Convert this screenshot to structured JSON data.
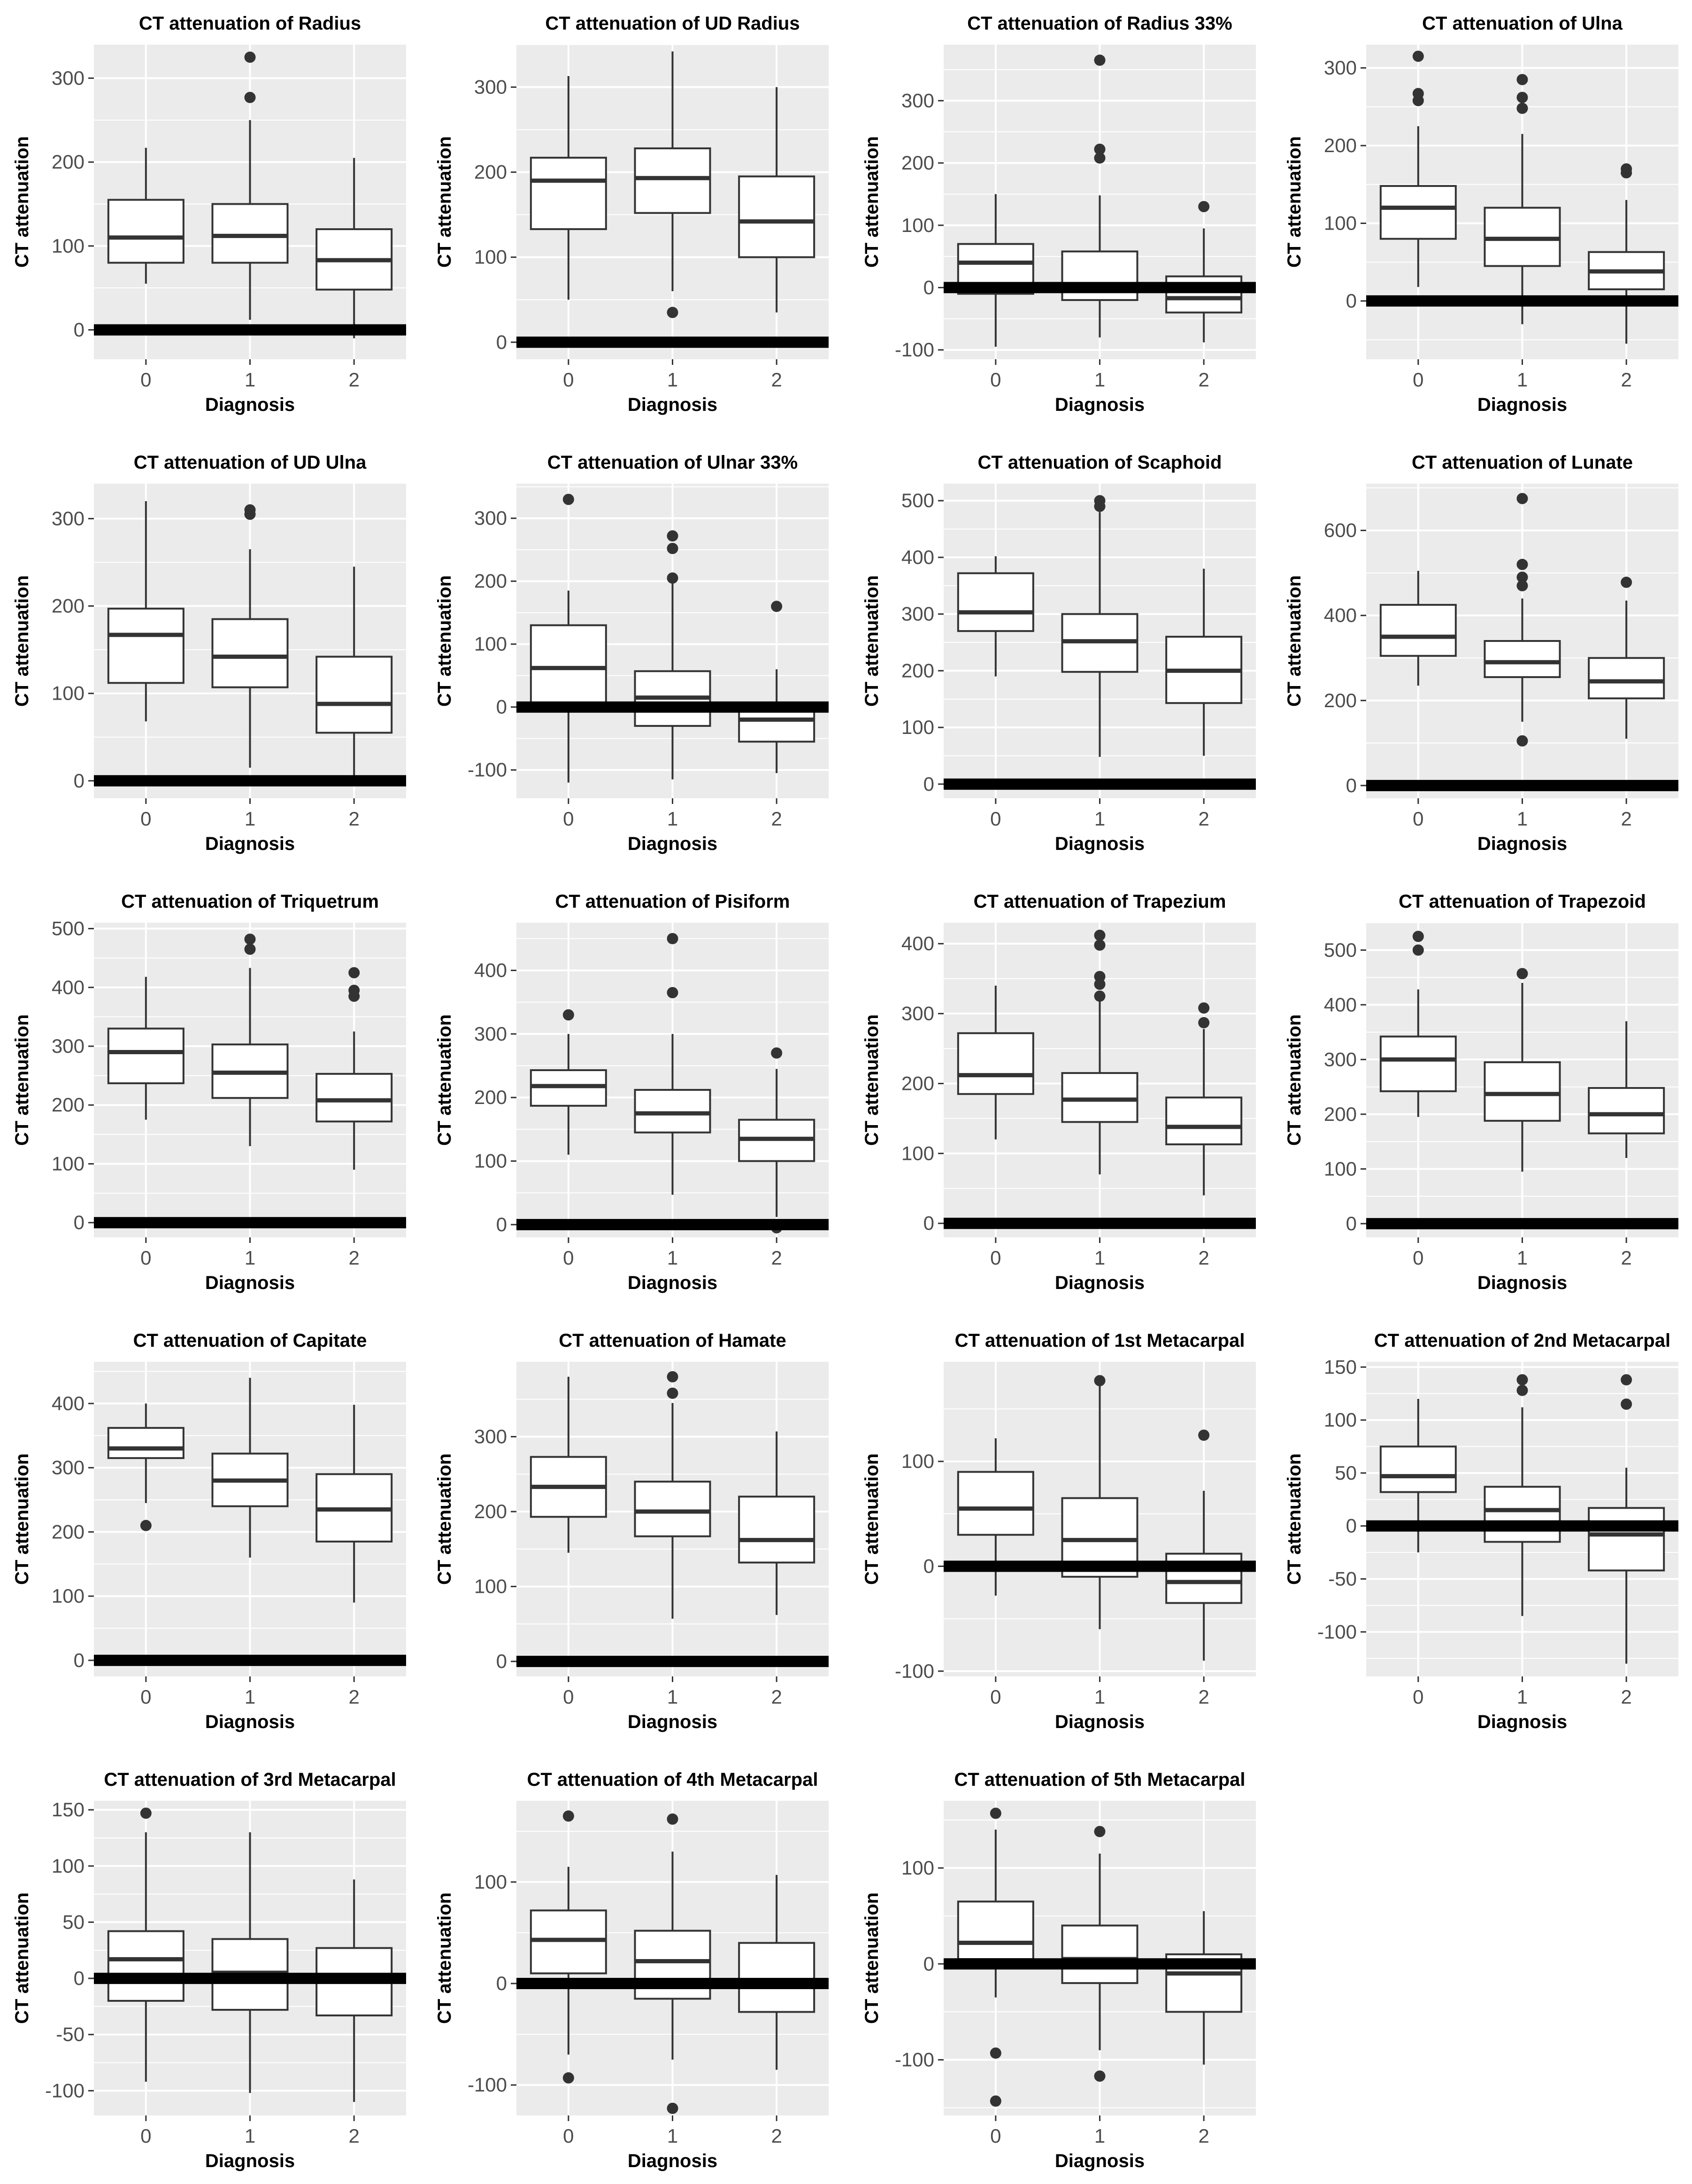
{
  "figure": {
    "xlabel": "Diagnosis",
    "ylabel": "CT attenuation",
    "reference_line_y": 0
  },
  "chart_data": [
    {
      "type": "box",
      "title": "CT attenuation of Radius",
      "categories": [
        "0",
        "1",
        "2"
      ],
      "ylim": [
        -35,
        340
      ],
      "yticks": [
        0,
        100,
        200,
        300
      ],
      "boxes": [
        {
          "whisker_low": 55,
          "q1": 80,
          "median": 110,
          "q3": 155,
          "whisker_high": 217,
          "outliers": []
        },
        {
          "whisker_low": 12,
          "q1": 80,
          "median": 112,
          "q3": 150,
          "whisker_high": 250,
          "outliers": [
            277,
            325
          ]
        },
        {
          "whisker_low": -10,
          "q1": 48,
          "median": 83,
          "q3": 120,
          "whisker_high": 205,
          "outliers": []
        }
      ]
    },
    {
      "type": "box",
      "title": "CT attenuation of UD Radius",
      "categories": [
        "0",
        "1",
        "2"
      ],
      "ylim": [
        -20,
        350
      ],
      "yticks": [
        0,
        100,
        200,
        300
      ],
      "boxes": [
        {
          "whisker_low": 50,
          "q1": 133,
          "median": 190,
          "q3": 217,
          "whisker_high": 313,
          "outliers": []
        },
        {
          "whisker_low": 60,
          "q1": 152,
          "median": 193,
          "q3": 228,
          "whisker_high": 342,
          "outliers": [
            35
          ]
        },
        {
          "whisker_low": 35,
          "q1": 100,
          "median": 142,
          "q3": 195,
          "whisker_high": 300,
          "outliers": []
        }
      ]
    },
    {
      "type": "box",
      "title": "CT attenuation of Radius 33%",
      "categories": [
        "0",
        "1",
        "2"
      ],
      "ylim": [
        -115,
        390
      ],
      "yticks": [
        -100,
        0,
        100,
        200,
        300
      ],
      "boxes": [
        {
          "whisker_low": -95,
          "q1": -10,
          "median": 40,
          "q3": 70,
          "whisker_high": 150,
          "outliers": []
        },
        {
          "whisker_low": -80,
          "q1": -20,
          "median": 5,
          "q3": 58,
          "whisker_high": 148,
          "outliers": [
            208,
            222,
            365
          ]
        },
        {
          "whisker_low": -88,
          "q1": -40,
          "median": -17,
          "q3": 18,
          "whisker_high": 95,
          "outliers": [
            130
          ]
        }
      ]
    },
    {
      "type": "box",
      "title": "CT attenuation of Ulna",
      "categories": [
        "0",
        "1",
        "2"
      ],
      "ylim": [
        -75,
        330
      ],
      "yticks": [
        0,
        100,
        200,
        300
      ],
      "boxes": [
        {
          "whisker_low": 18,
          "q1": 80,
          "median": 120,
          "q3": 148,
          "whisker_high": 225,
          "outliers": [
            258,
            267,
            315
          ]
        },
        {
          "whisker_low": -30,
          "q1": 45,
          "median": 80,
          "q3": 120,
          "whisker_high": 215,
          "outliers": [
            248,
            262,
            285
          ]
        },
        {
          "whisker_low": -55,
          "q1": 15,
          "median": 38,
          "q3": 63,
          "whisker_high": 130,
          "outliers": [
            165,
            170
          ]
        }
      ]
    },
    {
      "type": "box",
      "title": "CT attenuation of UD Ulna",
      "categories": [
        "0",
        "1",
        "2"
      ],
      "ylim": [
        -20,
        340
      ],
      "yticks": [
        0,
        100,
        200,
        300
      ],
      "boxes": [
        {
          "whisker_low": 68,
          "q1": 112,
          "median": 167,
          "q3": 197,
          "whisker_high": 320,
          "outliers": []
        },
        {
          "whisker_low": 15,
          "q1": 107,
          "median": 142,
          "q3": 185,
          "whisker_high": 265,
          "outliers": [
            305,
            310
          ]
        },
        {
          "whisker_low": 0,
          "q1": 55,
          "median": 88,
          "q3": 142,
          "whisker_high": 245,
          "outliers": []
        }
      ]
    },
    {
      "type": "box",
      "title": "CT attenuation of Ulnar 33%",
      "categories": [
        "0",
        "1",
        "2"
      ],
      "ylim": [
        -145,
        355
      ],
      "yticks": [
        -100,
        0,
        100,
        200,
        300
      ],
      "boxes": [
        {
          "whisker_low": -120,
          "q1": 5,
          "median": 62,
          "q3": 130,
          "whisker_high": 185,
          "outliers": [
            330
          ]
        },
        {
          "whisker_low": -115,
          "q1": -30,
          "median": 15,
          "q3": 57,
          "whisker_high": 200,
          "outliers": [
            205,
            252,
            272
          ]
        },
        {
          "whisker_low": -105,
          "q1": -55,
          "median": -20,
          "q3": 0,
          "whisker_high": 60,
          "outliers": [
            160
          ]
        }
      ]
    },
    {
      "type": "box",
      "title": "CT attenuation of Scaphoid",
      "categories": [
        "0",
        "1",
        "2"
      ],
      "ylim": [
        -25,
        530
      ],
      "yticks": [
        0,
        100,
        200,
        300,
        400,
        500
      ],
      "boxes": [
        {
          "whisker_low": 190,
          "q1": 270,
          "median": 303,
          "q3": 372,
          "whisker_high": 402,
          "outliers": []
        },
        {
          "whisker_low": 48,
          "q1": 198,
          "median": 252,
          "q3": 300,
          "whisker_high": 480,
          "outliers": [
            490,
            500
          ]
        },
        {
          "whisker_low": 50,
          "q1": 143,
          "median": 200,
          "q3": 260,
          "whisker_high": 380,
          "outliers": []
        }
      ]
    },
    {
      "type": "box",
      "title": "CT attenuation of Lunate",
      "categories": [
        "0",
        "1",
        "2"
      ],
      "ylim": [
        -30,
        710
      ],
      "yticks": [
        0,
        200,
        400,
        600
      ],
      "boxes": [
        {
          "whisker_low": 235,
          "q1": 305,
          "median": 350,
          "q3": 425,
          "whisker_high": 505,
          "outliers": []
        },
        {
          "whisker_low": 150,
          "q1": 255,
          "median": 290,
          "q3": 340,
          "whisker_high": 440,
          "outliers": [
            105,
            470,
            490,
            520,
            675
          ]
        },
        {
          "whisker_low": 110,
          "q1": 205,
          "median": 245,
          "q3": 300,
          "whisker_high": 435,
          "outliers": [
            478
          ]
        }
      ]
    },
    {
      "type": "box",
      "title": "CT attenuation of Triquetrum",
      "categories": [
        "0",
        "1",
        "2"
      ],
      "ylim": [
        -25,
        510
      ],
      "yticks": [
        0,
        100,
        200,
        300,
        400,
        500
      ],
      "boxes": [
        {
          "whisker_low": 175,
          "q1": 237,
          "median": 290,
          "q3": 330,
          "whisker_high": 418,
          "outliers": []
        },
        {
          "whisker_low": 130,
          "q1": 212,
          "median": 255,
          "q3": 303,
          "whisker_high": 433,
          "outliers": [
            465,
            482
          ]
        },
        {
          "whisker_low": 90,
          "q1": 172,
          "median": 208,
          "q3": 253,
          "whisker_high": 325,
          "outliers": [
            385,
            395,
            425
          ]
        }
      ]
    },
    {
      "type": "box",
      "title": "CT attenuation of Pisiform",
      "categories": [
        "0",
        "1",
        "2"
      ],
      "ylim": [
        -20,
        475
      ],
      "yticks": [
        0,
        100,
        200,
        300,
        400
      ],
      "boxes": [
        {
          "whisker_low": 110,
          "q1": 187,
          "median": 218,
          "q3": 243,
          "whisker_high": 300,
          "outliers": [
            330
          ]
        },
        {
          "whisker_low": 47,
          "q1": 145,
          "median": 175,
          "q3": 212,
          "whisker_high": 300,
          "outliers": [
            365,
            450
          ]
        },
        {
          "whisker_low": 12,
          "q1": 100,
          "median": 135,
          "q3": 165,
          "whisker_high": 245,
          "outliers": [
            270,
            -5
          ]
        }
      ]
    },
    {
      "type": "box",
      "title": "CT attenuation of Trapezium",
      "categories": [
        "0",
        "1",
        "2"
      ],
      "ylim": [
        -20,
        430
      ],
      "yticks": [
        0,
        100,
        200,
        300,
        400
      ],
      "boxes": [
        {
          "whisker_low": 120,
          "q1": 185,
          "median": 212,
          "q3": 272,
          "whisker_high": 340,
          "outliers": []
        },
        {
          "whisker_low": 70,
          "q1": 145,
          "median": 177,
          "q3": 215,
          "whisker_high": 320,
          "outliers": [
            325,
            342,
            353,
            398,
            412
          ]
        },
        {
          "whisker_low": 40,
          "q1": 113,
          "median": 138,
          "q3": 180,
          "whisker_high": 278,
          "outliers": [
            287,
            308
          ]
        }
      ]
    },
    {
      "type": "box",
      "title": "CT attenuation of Trapezoid",
      "categories": [
        "0",
        "1",
        "2"
      ],
      "ylim": [
        -25,
        550
      ],
      "yticks": [
        0,
        100,
        200,
        300,
        400,
        500
      ],
      "boxes": [
        {
          "whisker_low": 195,
          "q1": 242,
          "median": 300,
          "q3": 342,
          "whisker_high": 428,
          "outliers": [
            500,
            525
          ]
        },
        {
          "whisker_low": 95,
          "q1": 188,
          "median": 237,
          "q3": 295,
          "whisker_high": 440,
          "outliers": [
            457
          ]
        },
        {
          "whisker_low": 120,
          "q1": 165,
          "median": 200,
          "q3": 248,
          "whisker_high": 370,
          "outliers": []
        }
      ]
    },
    {
      "type": "box",
      "title": "CT attenuation of Capitate",
      "categories": [
        "0",
        "1",
        "2"
      ],
      "ylim": [
        -25,
        465
      ],
      "yticks": [
        0,
        100,
        200,
        300,
        400
      ],
      "boxes": [
        {
          "whisker_low": 245,
          "q1": 315,
          "median": 330,
          "q3": 362,
          "whisker_high": 400,
          "outliers": [
            210
          ]
        },
        {
          "whisker_low": 160,
          "q1": 240,
          "median": 280,
          "q3": 322,
          "whisker_high": 440,
          "outliers": []
        },
        {
          "whisker_low": 90,
          "q1": 185,
          "median": 235,
          "q3": 290,
          "whisker_high": 398,
          "outliers": []
        }
      ]
    },
    {
      "type": "box",
      "title": "CT attenuation of Hamate",
      "categories": [
        "0",
        "1",
        "2"
      ],
      "ylim": [
        -20,
        400
      ],
      "yticks": [
        0,
        100,
        200,
        300
      ],
      "boxes": [
        {
          "whisker_low": 145,
          "q1": 193,
          "median": 233,
          "q3": 273,
          "whisker_high": 380,
          "outliers": []
        },
        {
          "whisker_low": 57,
          "q1": 167,
          "median": 200,
          "q3": 240,
          "whisker_high": 345,
          "outliers": [
            358,
            380
          ]
        },
        {
          "whisker_low": 62,
          "q1": 132,
          "median": 162,
          "q3": 220,
          "whisker_high": 307,
          "outliers": []
        }
      ]
    },
    {
      "type": "box",
      "title": "CT attenuation of 1st Metacarpal",
      "categories": [
        "0",
        "1",
        "2"
      ],
      "ylim": [
        -105,
        195
      ],
      "yticks": [
        -100,
        0,
        100
      ],
      "boxes": [
        {
          "whisker_low": -28,
          "q1": 30,
          "median": 55,
          "q3": 90,
          "whisker_high": 122,
          "outliers": []
        },
        {
          "whisker_low": -60,
          "q1": -10,
          "median": 25,
          "q3": 65,
          "whisker_high": 177,
          "outliers": [
            177
          ]
        },
        {
          "whisker_low": -90,
          "q1": -35,
          "median": -15,
          "q3": 12,
          "whisker_high": 72,
          "outliers": [
            125
          ]
        }
      ]
    },
    {
      "type": "box",
      "title": "CT attenuation of 2nd Metacarpal",
      "categories": [
        "0",
        "1",
        "2"
      ],
      "ylim": [
        -142,
        155
      ],
      "yticks": [
        -100,
        -50,
        0,
        50,
        100,
        150
      ],
      "boxes": [
        {
          "whisker_low": -25,
          "q1": 32,
          "median": 47,
          "q3": 75,
          "whisker_high": 120,
          "outliers": []
        },
        {
          "whisker_low": -85,
          "q1": -15,
          "median": 15,
          "q3": 37,
          "whisker_high": 112,
          "outliers": [
            128,
            138
          ]
        },
        {
          "whisker_low": -130,
          "q1": -42,
          "median": -8,
          "q3": 17,
          "whisker_high": 55,
          "outliers": [
            115,
            138
          ]
        }
      ]
    },
    {
      "type": "box",
      "title": "CT attenuation of 3rd Metacarpal",
      "categories": [
        "0",
        "1",
        "2"
      ],
      "ylim": [
        -122,
        158
      ],
      "yticks": [
        -100,
        -50,
        0,
        50,
        100,
        150
      ],
      "boxes": [
        {
          "whisker_low": -92,
          "q1": -20,
          "median": 17,
          "q3": 42,
          "whisker_high": 130,
          "outliers": [
            147
          ]
        },
        {
          "whisker_low": -102,
          "q1": -28,
          "median": 5,
          "q3": 35,
          "whisker_high": 130,
          "outliers": []
        },
        {
          "whisker_low": -110,
          "q1": -33,
          "median": -3,
          "q3": 27,
          "whisker_high": 88,
          "outliers": []
        }
      ]
    },
    {
      "type": "box",
      "title": "CT attenuation of 4th Metacarpal",
      "categories": [
        "0",
        "1",
        "2"
      ],
      "ylim": [
        -130,
        180
      ],
      "yticks": [
        -100,
        0,
        100
      ],
      "boxes": [
        {
          "whisker_low": -70,
          "q1": 10,
          "median": 43,
          "q3": 72,
          "whisker_high": 115,
          "outliers": [
            165,
            -93
          ]
        },
        {
          "whisker_low": -75,
          "q1": -15,
          "median": 22,
          "q3": 52,
          "whisker_high": 130,
          "outliers": [
            162,
            -123
          ]
        },
        {
          "whisker_low": -85,
          "q1": -28,
          "median": 0,
          "q3": 40,
          "whisker_high": 107,
          "outliers": []
        }
      ]
    },
    {
      "type": "box",
      "title": "CT attenuation of 5th Metacarpal",
      "categories": [
        "0",
        "1",
        "2"
      ],
      "ylim": [
        -158,
        170
      ],
      "yticks": [
        -100,
        0,
        100
      ],
      "boxes": [
        {
          "whisker_low": -35,
          "q1": 5,
          "median": 22,
          "q3": 65,
          "whisker_high": 140,
          "outliers": [
            157,
            -93,
            -143
          ]
        },
        {
          "whisker_low": -90,
          "q1": -20,
          "median": 5,
          "q3": 40,
          "whisker_high": 115,
          "outliers": [
            138,
            -117
          ]
        },
        {
          "whisker_low": -105,
          "q1": -50,
          "median": -10,
          "q3": 10,
          "whisker_high": 55,
          "outliers": []
        }
      ]
    }
  ]
}
